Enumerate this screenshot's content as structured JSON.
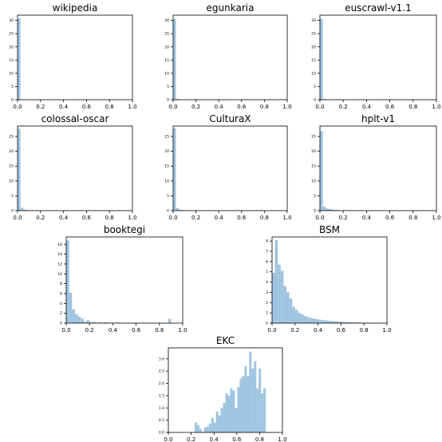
{
  "chart_data": [
    {
      "type": "bar",
      "title": "wikipedia",
      "xlim": [
        0,
        1
      ],
      "ylim": [
        0,
        32
      ],
      "x_ticks": [
        "0.0",
        "0.2",
        "0.4",
        "0.6",
        "0.8",
        "1.0"
      ],
      "y_ticks": [
        "0",
        "5",
        "10",
        "15",
        "20",
        "25",
        "30"
      ],
      "bin_width": 0.025,
      "values": [
        30.8,
        0.2,
        0.05
      ],
      "color": "#9fc4e0"
    },
    {
      "type": "bar",
      "title": "egunkaria",
      "xlim": [
        0,
        1
      ],
      "ylim": [
        0,
        32
      ],
      "x_ticks": [
        "0.0",
        "0.2",
        "0.4",
        "0.6",
        "0.8",
        "1.0"
      ],
      "y_ticks": [
        "0",
        "5",
        "10",
        "15",
        "20",
        "25",
        "30"
      ],
      "bin_width": 0.025,
      "values": [
        30.5,
        0.35,
        0.1
      ],
      "color": "#9fc4e0"
    },
    {
      "type": "bar",
      "title": "euscrawl-v1.1",
      "xlim": [
        0,
        1
      ],
      "ylim": [
        0,
        32
      ],
      "x_ticks": [
        "0.0",
        "0.2",
        "0.4",
        "0.6",
        "0.8",
        "1.0"
      ],
      "y_ticks": [
        "0",
        "5",
        "10",
        "15",
        "20",
        "25",
        "30"
      ],
      "bin_width": 0.025,
      "values": [
        30.6,
        0.25,
        0.08
      ],
      "color": "#9fc4e0"
    },
    {
      "type": "bar",
      "title": "colossal-oscar",
      "xlim": [
        0,
        1
      ],
      "ylim": [
        0,
        28.5
      ],
      "x_ticks": [
        "0.0",
        "0.2",
        "0.4",
        "0.6",
        "0.8",
        "1.0"
      ],
      "y_ticks": [
        "0",
        "5",
        "10",
        "15",
        "20",
        "25"
      ],
      "bin_width": 0.025,
      "values": [
        27.6,
        1.0,
        0.4,
        0.2,
        0.15,
        0.1,
        0.08,
        0.06,
        0.05,
        0.04,
        0.03,
        0.03,
        0.02,
        0.02,
        0.02
      ],
      "color": "#9fc4e0"
    },
    {
      "type": "bar",
      "title": "CulturaX",
      "xlim": [
        0,
        1
      ],
      "ylim": [
        0,
        28.5
      ],
      "x_ticks": [
        "0.0",
        "0.2",
        "0.4",
        "0.6",
        "0.8",
        "1.0"
      ],
      "y_ticks": [
        "0",
        "5",
        "10",
        "15",
        "20",
        "25"
      ],
      "bin_width": 0.025,
      "values": [
        27.8,
        0.9,
        0.35,
        0.2,
        0.14,
        0.1,
        0.08,
        0.06,
        0.05,
        0.04,
        0.03,
        0.03,
        0.02,
        0.02,
        0.02
      ],
      "color": "#9fc4e0"
    },
    {
      "type": "bar",
      "title": "hplt-v1",
      "xlim": [
        0,
        1
      ],
      "ylim": [
        0,
        28.5
      ],
      "x_ticks": [
        "0.0",
        "0.2",
        "0.4",
        "0.6",
        "0.8",
        "1.0"
      ],
      "y_ticks": [
        "0",
        "5",
        "10",
        "15",
        "20",
        "25"
      ],
      "bin_width": 0.025,
      "values": [
        26.8,
        1.3,
        0.7,
        0.5,
        0.35,
        0.25,
        0.18,
        0.14,
        0.1,
        0.08,
        0.06,
        0.05,
        0.04,
        0.03,
        0.03,
        0.02
      ],
      "color": "#9fc4e0"
    },
    {
      "type": "bar",
      "title": "booktegi",
      "xlim": [
        0,
        1
      ],
      "ylim": [
        0,
        17.5
      ],
      "x_ticks": [
        "0.0",
        "0.2",
        "0.4",
        "0.6",
        "0.8",
        "1.0"
      ],
      "y_ticks": [
        "0",
        "2",
        "4",
        "6",
        "8",
        "10",
        "12",
        "14",
        "16"
      ],
      "bin_width": 0.025,
      "values": [
        16.8,
        6.2,
        2.8,
        1.8,
        1.3,
        0.9,
        0.3,
        0.6,
        0.2,
        0.25,
        0.1,
        0.2,
        0.05,
        0.2,
        0.05,
        0.1,
        0.05,
        0.15,
        0.0,
        0.0,
        0.0,
        0.0,
        0.0,
        0.0,
        0.05,
        0.0,
        0.0,
        0.0,
        0.0,
        0.0,
        0.0,
        0.0,
        0.0,
        0.0,
        0.0,
        0.85
      ],
      "color": "#9fc4e0"
    },
    {
      "type": "bar",
      "title": "BSM",
      "xlim": [
        0,
        1
      ],
      "ylim": [
        0,
        8.4
      ],
      "x_ticks": [
        "0.0",
        "0.2",
        "0.4",
        "0.6",
        "0.8",
        "1.0"
      ],
      "y_ticks": [
        "0",
        "1",
        "2",
        "3",
        "4",
        "5",
        "6",
        "7",
        "8"
      ],
      "bin_width": 0.025,
      "values": [
        4.9,
        8.1,
        5.7,
        5.1,
        3.6,
        3.0,
        2.4,
        1.6,
        1.3,
        1.0,
        0.85,
        0.7,
        0.6,
        0.5,
        0.45,
        0.4,
        0.35,
        0.3,
        0.27,
        0.24,
        0.21,
        0.19,
        0.17,
        0.15,
        0.13,
        0.12,
        0.1,
        0.09,
        0.08,
        0.07,
        0.06,
        0.05,
        0.04,
        0.03,
        0.02,
        0.02
      ],
      "color": "#9fc4e0"
    },
    {
      "type": "bar",
      "title": "EKC",
      "xlim": [
        0,
        1
      ],
      "ylim": [
        0,
        3.45
      ],
      "x_ticks": [
        "0.0",
        "0.2",
        "0.4",
        "0.6",
        "0.8",
        "1.0"
      ],
      "y_ticks": [
        "0.0",
        "0.5",
        "1.0",
        "1.5",
        "2.0",
        "2.5",
        "3.0"
      ],
      "bin_width": 0.0208,
      "x_start": 0.23,
      "values": [
        0.4,
        0.3,
        0.15,
        0.0,
        0.2,
        0.25,
        0.35,
        0.6,
        0.4,
        0.85,
        0.7,
        1.0,
        1.2,
        1.6,
        1.5,
        1.8,
        1.7,
        1.0,
        1.85,
        2.2,
        2.3,
        2.7,
        2.3,
        3.3,
        2.6,
        2.9,
        1.8,
        2.6,
        1.6,
        1.8
      ],
      "color": "#9fc4e0"
    }
  ]
}
